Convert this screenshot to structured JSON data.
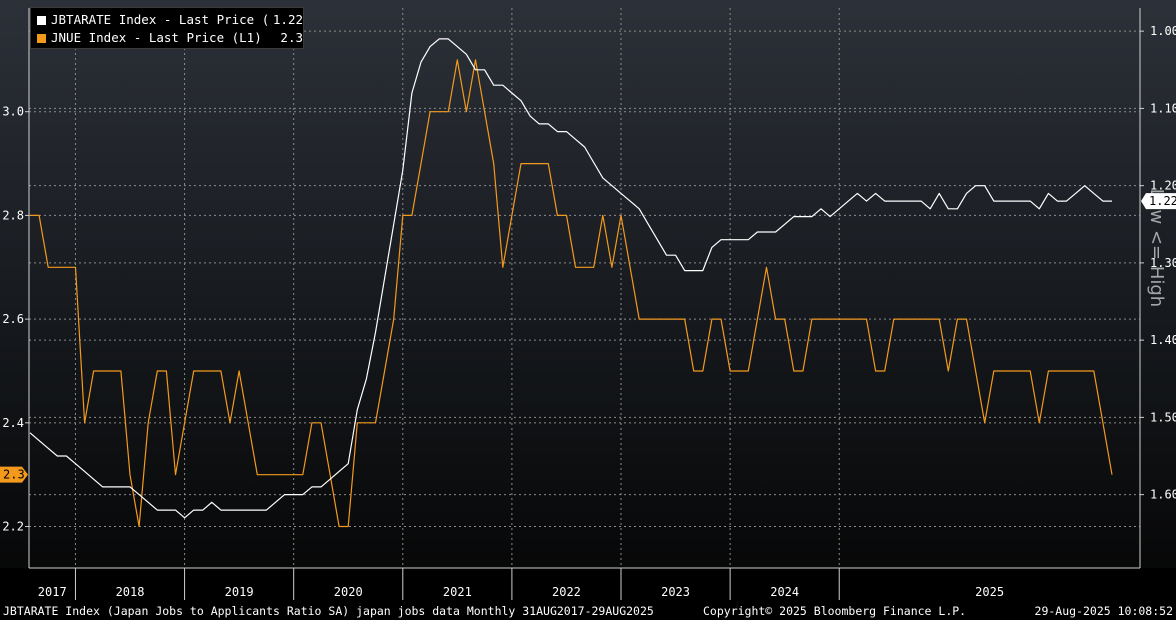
{
  "legend": [
    {
      "label": "JBTARATE Index - Last Price (R1)",
      "value": "1.22",
      "color": "#ffffff"
    },
    {
      "label": "JNUE Index - Last Price (L1)",
      "value": "2.3",
      "color": "#f39a1d"
    }
  ],
  "last_value_tags": {
    "right": "1.22",
    "left": "2.3"
  },
  "right_axis_note": "Low <= High",
  "footer": {
    "left": "JBTARATE Index (Japan Jobs to Applicants Ratio SA) japan jobs data  Monthly 31AUG2017-29AUG2025",
    "center": "Copyright© 2025 Bloomberg Finance L.P.",
    "right": "29-Aug-2025 10:08:52"
  },
  "colors": {
    "background_top": "#2c3038",
    "background_bottom": "#000000",
    "white_series": "#ffffff",
    "orange_series": "#f39a1d",
    "grid": "#8a8a8a"
  },
  "chart_data": {
    "type": "line",
    "x_start": "2017-08",
    "x_end": "2025-08",
    "x_axis_labels": [
      "2017",
      "2018",
      "2019",
      "2020",
      "2021",
      "2022",
      "2023",
      "2024",
      "2025"
    ],
    "left_axis": {
      "ticks": [
        "2.2",
        "2.4",
        "2.6",
        "2.8",
        "3.0"
      ],
      "range": [
        2.12,
        3.2
      ]
    },
    "right_axis": {
      "ticks": [
        "1.00",
        "1.10",
        "1.20",
        "1.30",
        "1.40",
        "1.50",
        "1.60"
      ],
      "range": [
        0.97,
        1.695
      ],
      "inverted": true
    },
    "grid": true,
    "series": [
      {
        "name": "JNUE Index - Last Price (L1)",
        "axis": "left",
        "color": "#f39a1d",
        "values": [
          2.8,
          2.8,
          2.7,
          2.7,
          2.7,
          2.7,
          2.4,
          2.5,
          2.5,
          2.5,
          2.5,
          2.3,
          2.2,
          2.4,
          2.5,
          2.5,
          2.3,
          2.4,
          2.5,
          2.5,
          2.5,
          2.5,
          2.4,
          2.5,
          2.4,
          2.3,
          2.3,
          2.3,
          2.3,
          2.3,
          2.3,
          2.4,
          2.4,
          2.3,
          2.2,
          2.2,
          2.4,
          2.4,
          2.4,
          2.5,
          2.6,
          2.8,
          2.8,
          2.9,
          3.0,
          3.0,
          3.0,
          3.1,
          3.0,
          3.1,
          3.0,
          2.9,
          2.7,
          2.8,
          2.9,
          2.9,
          2.9,
          2.9,
          2.8,
          2.8,
          2.7,
          2.7,
          2.7,
          2.8,
          2.7,
          2.8,
          2.7,
          2.6,
          2.6,
          2.6,
          2.6,
          2.6,
          2.6,
          2.5,
          2.5,
          2.6,
          2.6,
          2.5,
          2.5,
          2.5,
          2.6,
          2.7,
          2.6,
          2.6,
          2.5,
          2.5,
          2.6,
          2.6,
          2.6,
          2.6,
          2.6,
          2.6,
          2.6,
          2.5,
          2.5,
          2.6,
          2.6,
          2.6,
          2.6,
          2.6,
          2.6,
          2.5,
          2.6,
          2.6,
          2.5,
          2.4,
          2.5,
          2.5,
          2.5,
          2.5,
          2.5,
          2.4,
          2.5,
          2.5,
          2.5,
          2.5,
          2.5,
          2.5,
          2.4,
          2.3
        ]
      },
      {
        "name": "JBTARATE Index - Last Price (R1)",
        "axis": "right",
        "color": "#ffffff",
        "values": [
          1.52,
          1.53,
          1.54,
          1.55,
          1.55,
          1.56,
          1.57,
          1.58,
          1.59,
          1.59,
          1.59,
          1.59,
          1.6,
          1.61,
          1.62,
          1.62,
          1.62,
          1.63,
          1.62,
          1.62,
          1.61,
          1.62,
          1.62,
          1.62,
          1.62,
          1.62,
          1.62,
          1.61,
          1.6,
          1.6,
          1.6,
          1.59,
          1.59,
          1.58,
          1.57,
          1.56,
          1.49,
          1.45,
          1.39,
          1.32,
          1.25,
          1.18,
          1.08,
          1.04,
          1.02,
          1.01,
          1.01,
          1.02,
          1.03,
          1.05,
          1.05,
          1.07,
          1.07,
          1.08,
          1.09,
          1.11,
          1.12,
          1.12,
          1.13,
          1.13,
          1.14,
          1.15,
          1.17,
          1.19,
          1.2,
          1.21,
          1.22,
          1.23,
          1.25,
          1.27,
          1.29,
          1.29,
          1.31,
          1.31,
          1.31,
          1.28,
          1.27,
          1.27,
          1.27,
          1.27,
          1.26,
          1.26,
          1.26,
          1.25,
          1.24,
          1.24,
          1.24,
          1.23,
          1.24,
          1.23,
          1.22,
          1.21,
          1.22,
          1.21,
          1.22,
          1.22,
          1.22,
          1.22,
          1.22,
          1.23,
          1.21,
          1.23,
          1.23,
          1.21,
          1.2,
          1.2,
          1.22,
          1.22,
          1.22,
          1.22,
          1.22,
          1.23,
          1.21,
          1.22,
          1.22,
          1.21,
          1.2,
          1.21,
          1.22,
          1.22
        ]
      }
    ]
  }
}
